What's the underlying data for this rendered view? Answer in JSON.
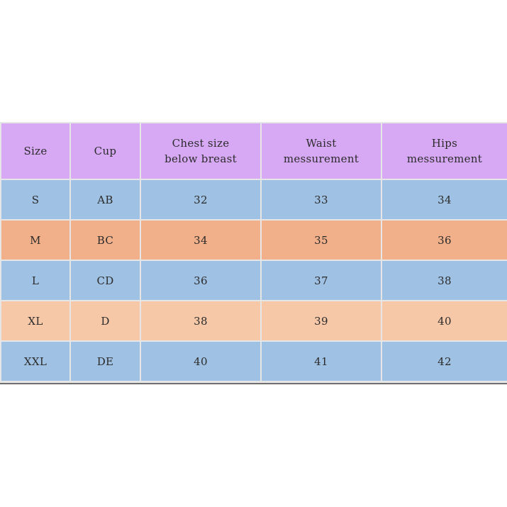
{
  "table": {
    "headers": [
      "Size",
      "Cup",
      "Chest size\nbelow breast",
      "Waist\nmessurement",
      "Hips\nmessurement"
    ],
    "rows": [
      [
        "S",
        "AB",
        "32",
        "33",
        "34"
      ],
      [
        "M",
        "BC",
        "34",
        "35",
        "36"
      ],
      [
        "L",
        "CD",
        "36",
        "37",
        "38"
      ],
      [
        "XL",
        "D",
        "38",
        "39",
        "40"
      ],
      [
        "XXL",
        "DE",
        "40",
        "41",
        "42"
      ]
    ]
  },
  "colors": {
    "header": "#d7a9f4",
    "row_blue": "#9fc1e3",
    "row_orange": "#f1b089",
    "row_peach": "#f6c8a8"
  }
}
